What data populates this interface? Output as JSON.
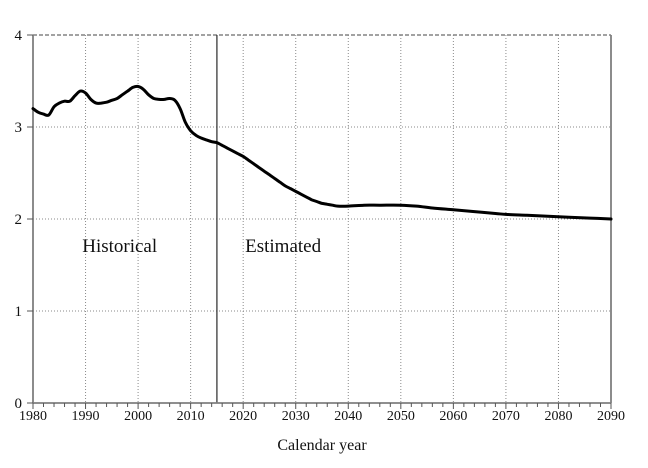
{
  "chart_data": {
    "type": "line",
    "title": "",
    "xlabel": "Calendar year",
    "ylabel": "",
    "xlim": [
      1980,
      2090
    ],
    "ylim": [
      0,
      4
    ],
    "x_ticks": [
      1980,
      1990,
      2000,
      2010,
      2020,
      2030,
      2040,
      2050,
      2060,
      2070,
      2080,
      2090
    ],
    "x_tick_labels": [
      "1980",
      "1990",
      "2000",
      "2010",
      "2020",
      "2030",
      "2040",
      "2050",
      "2060",
      "2070",
      "2080",
      "2090"
    ],
    "y_ticks": [
      0,
      1,
      2,
      3,
      4
    ],
    "y_tick_labels": [
      "0",
      "1",
      "2",
      "3",
      "4"
    ],
    "x_minor_tick_step": 2,
    "grid": "dotted",
    "legend_position": "none",
    "boundary": {
      "x": 2015
    },
    "annotations": [
      {
        "label": "Historical",
        "x": 1996.5,
        "y": 1.72
      },
      {
        "label": "Estimated",
        "x": 2027.6,
        "y": 1.72
      }
    ],
    "series": [
      {
        "name": "ratio",
        "color": "#000000",
        "stroke_width": 3,
        "points": [
          [
            1980,
            3.2
          ],
          [
            1981,
            3.16
          ],
          [
            1982,
            3.14
          ],
          [
            1983,
            3.13
          ],
          [
            1984,
            3.22
          ],
          [
            1985,
            3.26
          ],
          [
            1986,
            3.28
          ],
          [
            1987,
            3.28
          ],
          [
            1988,
            3.34
          ],
          [
            1989,
            3.39
          ],
          [
            1990,
            3.37
          ],
          [
            1991,
            3.3
          ],
          [
            1992,
            3.26
          ],
          [
            1993,
            3.26
          ],
          [
            1994,
            3.27
          ],
          [
            1995,
            3.29
          ],
          [
            1996,
            3.31
          ],
          [
            1997,
            3.35
          ],
          [
            1998,
            3.39
          ],
          [
            1999,
            3.43
          ],
          [
            2000,
            3.44
          ],
          [
            2001,
            3.41
          ],
          [
            2002,
            3.35
          ],
          [
            2003,
            3.31
          ],
          [
            2004,
            3.3
          ],
          [
            2005,
            3.3
          ],
          [
            2006,
            3.31
          ],
          [
            2007,
            3.29
          ],
          [
            2008,
            3.2
          ],
          [
            2009,
            3.05
          ],
          [
            2010,
            2.96
          ],
          [
            2011,
            2.91
          ],
          [
            2012,
            2.88
          ],
          [
            2013,
            2.86
          ],
          [
            2014,
            2.84
          ],
          [
            2015,
            2.83
          ],
          [
            2016,
            2.8
          ],
          [
            2017,
            2.77
          ],
          [
            2018,
            2.74
          ],
          [
            2019,
            2.71
          ],
          [
            2020,
            2.68
          ],
          [
            2021,
            2.64
          ],
          [
            2022,
            2.6
          ],
          [
            2023,
            2.56
          ],
          [
            2024,
            2.52
          ],
          [
            2025,
            2.48
          ],
          [
            2026,
            2.44
          ],
          [
            2027,
            2.4
          ],
          [
            2028,
            2.36
          ],
          [
            2029,
            2.33
          ],
          [
            2030,
            2.3
          ],
          [
            2031,
            2.27
          ],
          [
            2032,
            2.24
          ],
          [
            2033,
            2.21
          ],
          [
            2034,
            2.19
          ],
          [
            2035,
            2.17
          ],
          [
            2036,
            2.16
          ],
          [
            2037,
            2.15
          ],
          [
            2038,
            2.14
          ],
          [
            2040,
            2.14
          ],
          [
            2043,
            2.15
          ],
          [
            2046,
            2.15
          ],
          [
            2050,
            2.15
          ],
          [
            2053,
            2.14
          ],
          [
            2056,
            2.12
          ],
          [
            2060,
            2.1
          ],
          [
            2064,
            2.08
          ],
          [
            2068,
            2.06
          ],
          [
            2070,
            2.05
          ],
          [
            2074,
            2.04
          ],
          [
            2078,
            2.03
          ],
          [
            2082,
            2.02
          ],
          [
            2086,
            2.01
          ],
          [
            2090,
            2.0
          ]
        ]
      }
    ],
    "colors": {
      "grid": "#8a8a8a",
      "top_border": "#444444",
      "axis": "#7f7f7f",
      "tick": "#555555",
      "boundary_line": "#3a3a3a",
      "text": "#111111"
    }
  }
}
